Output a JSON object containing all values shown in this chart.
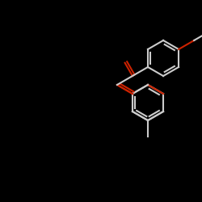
{
  "bg_color": "#000000",
  "bond_color": "#cccccc",
  "o_color": "#cc2200",
  "lw": 1.5,
  "figsize": [
    2.5,
    2.5
  ],
  "dpi": 100
}
